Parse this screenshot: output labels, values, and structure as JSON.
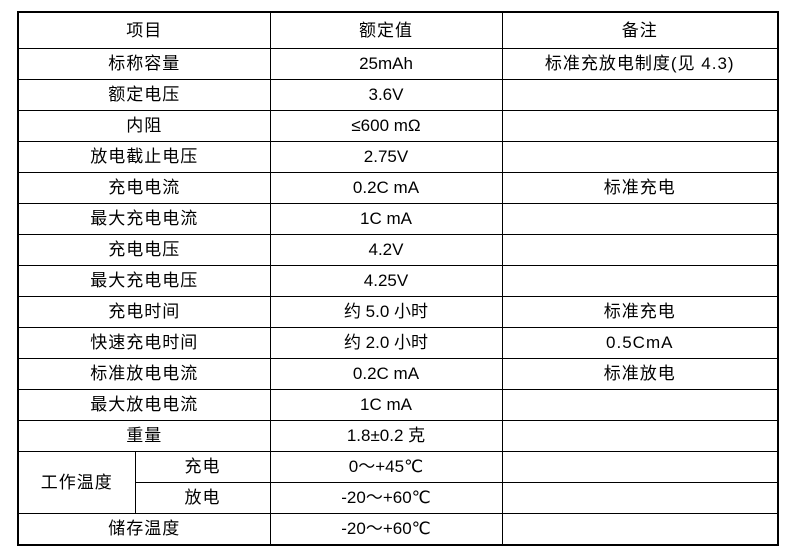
{
  "headers": {
    "item": "项目",
    "rated": "额定值",
    "note": "备注"
  },
  "rows": [
    {
      "item": "标称容量",
      "value": "25mAh",
      "note": "标准充放电制度(见 4.3)"
    },
    {
      "item": "额定电压",
      "value": "3.6V",
      "note": ""
    },
    {
      "item": "内阻",
      "value": "≤600 mΩ",
      "note": ""
    },
    {
      "item": "放电截止电压",
      "value": "2.75V",
      "note": ""
    },
    {
      "item": "充电电流",
      "value": "0.2C mA",
      "note": "标准充电"
    },
    {
      "item": "最大充电电流",
      "value": "1C mA",
      "note": ""
    },
    {
      "item": "充电电压",
      "value": "4.2V",
      "note": ""
    },
    {
      "item": "最大充电电压",
      "value": "4.25V",
      "note": ""
    },
    {
      "item": "充电时间",
      "value": "约 5.0 小时",
      "note": "标准充电"
    },
    {
      "item": "快速充电时间",
      "value": "约 2.0 小时",
      "note": "0.5CmA"
    },
    {
      "item": "标准放电电流",
      "value": "0.2C mA",
      "note": "标准放电"
    },
    {
      "item": "最大放电电流",
      "value": "1C mA",
      "note": ""
    },
    {
      "item": "重量",
      "value": "1.8±0.2 克",
      "note": ""
    }
  ],
  "operating_temp": {
    "label": "工作温度",
    "charge": {
      "label": "充电",
      "value": "0～+45℃",
      "note": ""
    },
    "discharge": {
      "label": "放电",
      "value": "-20～+60℃",
      "note": ""
    }
  },
  "storage_temp": {
    "item": "储存温度",
    "value": "-20～+60℃",
    "note": ""
  }
}
